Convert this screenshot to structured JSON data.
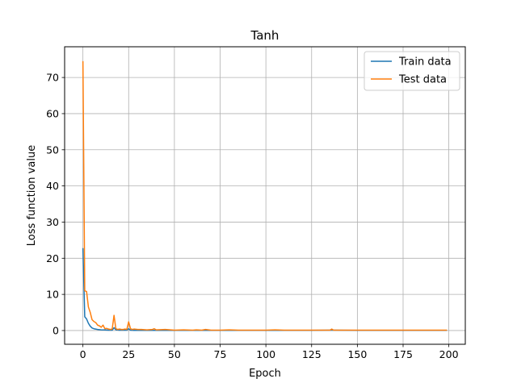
{
  "chart_data": {
    "type": "line",
    "title": "Tanh",
    "xlabel": "Epoch",
    "ylabel": "Loss function value",
    "xlim": [
      -10,
      209
    ],
    "ylim": [
      -3.8,
      78.5
    ],
    "xticks": [
      0,
      25,
      50,
      75,
      100,
      125,
      150,
      175,
      200
    ],
    "yticks": [
      0,
      10,
      20,
      30,
      40,
      50,
      60,
      70
    ],
    "grid": true,
    "legend_position": "top-right",
    "series": [
      {
        "name": "Train data",
        "color": "#1f77b4",
        "x": [
          0,
          1,
          2,
          3,
          4,
          5,
          6,
          8,
          10,
          12,
          14,
          16,
          17,
          18,
          20,
          22,
          24,
          25,
          26,
          28,
          30,
          35,
          40,
          50,
          60,
          80,
          100,
          120,
          136,
          150,
          175,
          199
        ],
        "values": [
          22.8,
          3.8,
          3.2,
          2.0,
          1.2,
          0.7,
          0.5,
          0.3,
          0.2,
          0.15,
          0.1,
          0.1,
          0.8,
          0.2,
          0.1,
          0.1,
          0.1,
          0.5,
          0.1,
          0.05,
          0.05,
          0.05,
          0.05,
          0.05,
          0.05,
          0.05,
          0.05,
          0.05,
          0.1,
          0.05,
          0.05,
          0.05
        ]
      },
      {
        "name": "Test data",
        "color": "#ff7f0e",
        "x": [
          0,
          1,
          2,
          3,
          4,
          5,
          6,
          7,
          8,
          9,
          10,
          11,
          12,
          13,
          14,
          15,
          16,
          17,
          18,
          19,
          20,
          21,
          22,
          23,
          24,
          25,
          26,
          27,
          28,
          30,
          32,
          35,
          38,
          39,
          40,
          45,
          50,
          55,
          60,
          62,
          65,
          67,
          70,
          75,
          80,
          85,
          90,
          95,
          100,
          105,
          110,
          115,
          120,
          125,
          130,
          135,
          136,
          137,
          140,
          150,
          160,
          170,
          180,
          190,
          199
        ],
        "values": [
          74.5,
          11.0,
          10.8,
          6.5,
          5.0,
          3.0,
          2.5,
          2.2,
          1.5,
          1.3,
          0.9,
          1.5,
          0.5,
          0.6,
          0.4,
          0.3,
          0.4,
          4.2,
          0.5,
          0.3,
          0.4,
          0.3,
          0.3,
          0.4,
          0.3,
          2.4,
          0.5,
          0.3,
          0.4,
          0.3,
          0.3,
          0.2,
          0.3,
          0.5,
          0.2,
          0.3,
          0.1,
          0.2,
          0.1,
          0.2,
          0.1,
          0.3,
          0.1,
          0.1,
          0.2,
          0.1,
          0.1,
          0.1,
          0.1,
          0.2,
          0.1,
          0.1,
          0.1,
          0.1,
          0.1,
          0.1,
          0.4,
          0.1,
          0.1,
          0.1,
          0.1,
          0.1,
          0.1,
          0.1,
          0.1
        ]
      }
    ]
  }
}
